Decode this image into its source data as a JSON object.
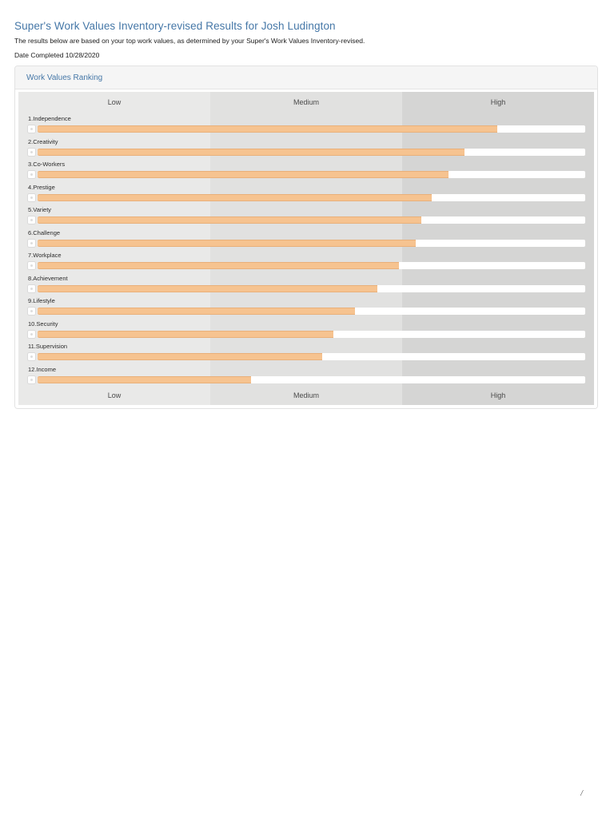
{
  "header": {
    "title": "Super's Work Values Inventory-revised Results for Josh Ludington",
    "subtitle": "The results below are based on your top work values, as determined by your Super's Work Values Inventory-revised.",
    "date_completed": "Date Completed 10/28/2020"
  },
  "panel": {
    "title": "Work Values Ranking"
  },
  "chart_data": {
    "type": "bar",
    "orientation": "horizontal",
    "title": "Work Values Ranking",
    "categories": [
      "1.Independence",
      "2.Creativity",
      "3.Co-Workers",
      "4.Prestige",
      "5.Variety",
      "6.Challenge",
      "7.Workplace",
      "8.Achievement",
      "9.Lifestyle",
      "10.Security",
      "11.Supervision",
      "12.Income"
    ],
    "values": [
      84,
      78,
      75,
      72,
      70,
      69,
      66,
      62,
      58,
      54,
      52,
      39
    ],
    "value_note": "percent of full scale width, estimated from pixels",
    "xlim": [
      0,
      100
    ],
    "axis_bands": [
      "Low",
      "Medium",
      "High"
    ],
    "band_colors": [
      "#e9e9e8",
      "#e1e1e0",
      "#d5d5d4"
    ],
    "bar_color": "#f6c390",
    "track_color": "#ffffff",
    "legend": "none",
    "grid": "off"
  },
  "colors": {
    "accent_blue": "#4577a7",
    "panel_header_bg": "#f5f5f5"
  },
  "footer": {
    "page_marker": "/"
  }
}
